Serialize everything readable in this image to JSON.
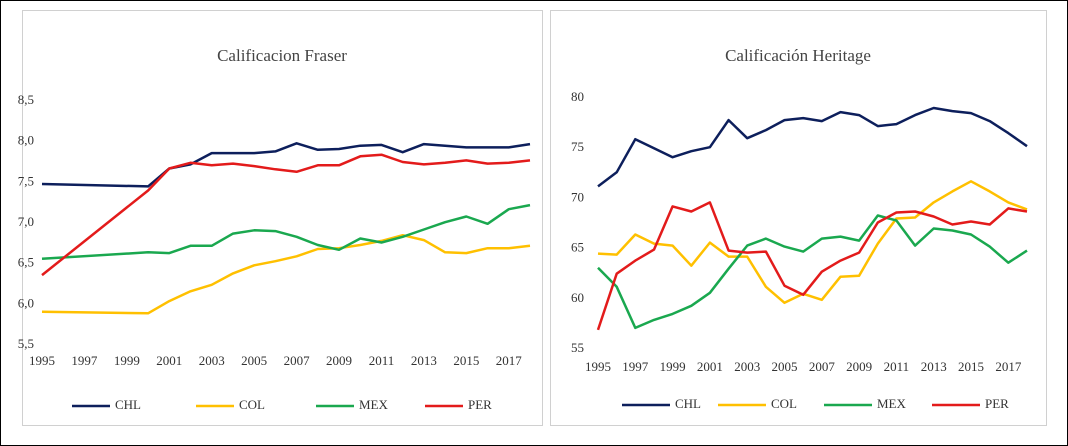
{
  "chart_data": [
    {
      "type": "line",
      "title": "Calificacion Fraser",
      "x": [
        1995,
        2000,
        2001,
        2002,
        2003,
        2004,
        2005,
        2006,
        2007,
        2008,
        2009,
        2010,
        2011,
        2012,
        2013,
        2014,
        2015,
        2016,
        2017,
        2018
      ],
      "xlim": [
        1995,
        2018
      ],
      "xticks": [
        1995,
        1997,
        1999,
        2001,
        2003,
        2005,
        2007,
        2009,
        2011,
        2013,
        2015,
        2017
      ],
      "ylim": [
        5.5,
        8.5
      ],
      "yticks": [
        {
          "value": 5.5,
          "label": "5,5"
        },
        {
          "value": 6.0,
          "label": "6,0"
        },
        {
          "value": 6.5,
          "label": "6,5"
        },
        {
          "value": 7.0,
          "label": "7,0"
        },
        {
          "value": 7.5,
          "label": "7,5"
        },
        {
          "value": 8.0,
          "label": "8,0"
        },
        {
          "value": 8.5,
          "label": "8,5"
        }
      ],
      "grid": false,
      "legend": "bottom",
      "series": [
        {
          "name": "CHL",
          "color": "#0d1f5c",
          "values": [
            7.48,
            7.45,
            7.67,
            7.72,
            7.86,
            7.86,
            7.86,
            7.88,
            7.98,
            7.9,
            7.91,
            7.95,
            7.96,
            7.87,
            7.97,
            7.95,
            7.93,
            7.93,
            7.93,
            7.97
          ]
        },
        {
          "name": "COL",
          "color": "#ffc000",
          "values": [
            5.91,
            5.89,
            6.04,
            6.16,
            6.24,
            6.38,
            6.48,
            6.53,
            6.59,
            6.68,
            6.69,
            6.73,
            6.78,
            6.85,
            6.79,
            6.64,
            6.63,
            6.69,
            6.69,
            6.72
          ]
        },
        {
          "name": "MEX",
          "color": "#1aa84f",
          "values": [
            6.56,
            6.64,
            6.63,
            6.72,
            6.72,
            6.87,
            6.91,
            6.9,
            6.83,
            6.73,
            6.67,
            6.81,
            6.76,
            6.83,
            6.92,
            7.01,
            7.08,
            6.99,
            7.17,
            7.22
          ]
        },
        {
          "name": "PER",
          "color": "#e31b1b",
          "values": [
            6.36,
            7.4,
            7.67,
            7.74,
            7.71,
            7.73,
            7.7,
            7.66,
            7.63,
            7.71,
            7.71,
            7.82,
            7.84,
            7.75,
            7.72,
            7.74,
            7.77,
            7.73,
            7.74,
            7.77
          ]
        }
      ]
    },
    {
      "type": "line",
      "title": "Calificación  Heritage",
      "x": [
        1995,
        1996,
        1997,
        1998,
        1999,
        2000,
        2001,
        2002,
        2003,
        2004,
        2005,
        2006,
        2007,
        2008,
        2009,
        2010,
        2011,
        2012,
        2013,
        2014,
        2015,
        2016,
        2017,
        2018
      ],
      "xlim": [
        1995,
        2018
      ],
      "xticks": [
        1995,
        1997,
        1999,
        2001,
        2003,
        2005,
        2007,
        2009,
        2011,
        2013,
        2015,
        2017
      ],
      "ylim": [
        55,
        80
      ],
      "yticks": [
        55,
        60,
        65,
        70,
        75,
        80
      ],
      "grid": false,
      "legend": "bottom",
      "series": [
        {
          "name": "CHL",
          "color": "#0d1f5c",
          "values": [
            71.2,
            72.6,
            75.9,
            75.0,
            74.1,
            74.7,
            75.1,
            77.8,
            76.0,
            76.8,
            77.8,
            78.0,
            77.7,
            78.6,
            78.3,
            77.2,
            77.4,
            78.3,
            79.0,
            78.7,
            78.5,
            77.7,
            76.5,
            75.2
          ]
        },
        {
          "name": "COL",
          "color": "#ffc000",
          "values": [
            64.5,
            64.4,
            66.4,
            65.5,
            65.3,
            63.3,
            65.6,
            64.2,
            64.2,
            61.2,
            59.6,
            60.5,
            59.9,
            62.2,
            62.3,
            65.5,
            68.0,
            68.1,
            69.6,
            70.7,
            71.7,
            70.7,
            69.6,
            68.9
          ]
        },
        {
          "name": "MEX",
          "color": "#1aa84f",
          "values": [
            63.1,
            61.2,
            57.1,
            57.9,
            58.5,
            59.3,
            60.6,
            63.0,
            65.3,
            66.0,
            65.2,
            64.7,
            66.0,
            66.2,
            65.8,
            68.3,
            67.8,
            65.3,
            67.0,
            66.8,
            66.4,
            65.2,
            63.6,
            64.8
          ]
        },
        {
          "name": "PER",
          "color": "#e31b1b",
          "values": [
            56.9,
            62.5,
            63.8,
            64.9,
            69.2,
            68.7,
            69.6,
            64.8,
            64.6,
            64.7,
            61.3,
            60.4,
            62.7,
            63.8,
            64.6,
            67.6,
            68.6,
            68.7,
            68.2,
            67.4,
            67.7,
            67.4,
            69.0,
            68.7
          ]
        }
      ]
    }
  ]
}
